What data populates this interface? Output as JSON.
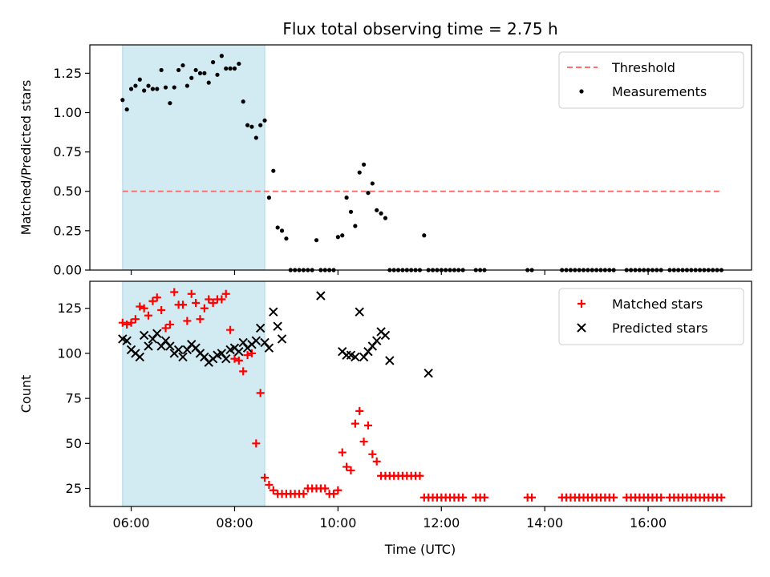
{
  "chart_data": {
    "title": "Flux total observing time = 2.75 h",
    "xlabel": "Time (UTC)",
    "x_range_hours": [
      5.2,
      18.0
    ],
    "x_ticks": [
      "06:00",
      "08:00",
      "10:00",
      "12:00",
      "14:00",
      "16:00"
    ],
    "highlight_band": {
      "start": "05:50",
      "end": "08:35",
      "color": "#add8e6"
    },
    "panels": [
      {
        "type": "scatter",
        "ylabel": "Matched/Predicted stars",
        "ylim": [
          0,
          1.43
        ],
        "yticks": [
          "0.00",
          "0.25",
          "0.50",
          "0.75",
          "1.00",
          "1.25"
        ],
        "legend_position": "top-right",
        "threshold": {
          "name": "Threshold",
          "value": 0.5,
          "x_start": "05:50",
          "x_end": "17:25",
          "color": "#ff6f6f"
        },
        "series": [
          {
            "name": "Measurements",
            "color": "#000000",
            "marker": "dot",
            "x": [
              "05:50",
              "05:55",
              "06:00",
              "06:05",
              "06:10",
              "06:15",
              "06:20",
              "06:25",
              "06:30",
              "06:35",
              "06:40",
              "06:45",
              "06:50",
              "06:55",
              "07:00",
              "07:05",
              "07:10",
              "07:15",
              "07:20",
              "07:25",
              "07:30",
              "07:35",
              "07:40",
              "07:45",
              "07:50",
              "07:55",
              "08:00",
              "08:05",
              "08:10",
              "08:15",
              "08:20",
              "08:25",
              "08:30",
              "08:35",
              "08:40",
              "08:45",
              "08:50",
              "08:55",
              "09:00",
              "09:05",
              "09:10",
              "09:15",
              "09:20",
              "09:25",
              "09:30",
              "09:35",
              "09:40",
              "09:45",
              "09:50",
              "09:55",
              "10:00",
              "10:05",
              "10:10",
              "10:15",
              "10:20",
              "10:25",
              "10:30",
              "10:35",
              "10:40",
              "10:45",
              "10:50",
              "10:55",
              "11:00",
              "11:05",
              "11:10",
              "11:15",
              "11:20",
              "11:25",
              "11:30",
              "11:35",
              "11:40",
              "11:45",
              "11:50",
              "11:55",
              "12:00",
              "12:05",
              "12:10",
              "12:15",
              "12:20",
              "12:25",
              "12:40",
              "12:45",
              "12:50",
              "13:40",
              "13:45",
              "14:20",
              "14:25",
              "14:30",
              "14:35",
              "14:40",
              "14:45",
              "14:50",
              "14:55",
              "15:00",
              "15:05",
              "15:10",
              "15:15",
              "15:20",
              "15:35",
              "15:40",
              "15:45",
              "15:50",
              "15:55",
              "16:00",
              "16:05",
              "16:10",
              "16:15",
              "16:25",
              "16:30",
              "16:35",
              "16:40",
              "16:45",
              "16:50",
              "16:55",
              "17:00",
              "17:05",
              "17:10",
              "17:15",
              "17:20",
              "17:25"
            ],
            "y": [
              1.08,
              1.02,
              1.15,
              1.17,
              1.21,
              1.14,
              1.17,
              1.15,
              1.15,
              1.27,
              1.16,
              1.06,
              1.16,
              1.27,
              1.3,
              1.17,
              1.22,
              1.27,
              1.25,
              1.25,
              1.19,
              1.32,
              1.24,
              1.36,
              1.28,
              1.28,
              1.28,
              1.31,
              1.07,
              0.92,
              0.91,
              0.84,
              0.92,
              0.95,
              0.46,
              0.63,
              0.27,
              0.25,
              0.2,
              0.0,
              0.0,
              0.0,
              0.0,
              0.0,
              0.0,
              0.19,
              0.0,
              0.0,
              0.0,
              0.0,
              0.21,
              0.22,
              0.46,
              0.37,
              0.28,
              0.62,
              0.67,
              0.49,
              0.55,
              0.38,
              0.36,
              0.33,
              0.0,
              0.0,
              0.0,
              0.0,
              0.0,
              0.0,
              0.0,
              0.0,
              0.22,
              0.0,
              0.0,
              0.0,
              0.0,
              0.0,
              0.0,
              0.0,
              0.0,
              0.0,
              0.0,
              0.0,
              0.0,
              0.0,
              0.0,
              0.0,
              0.0,
              0.0,
              0.0,
              0.0,
              0.0,
              0.0,
              0.0,
              0.0,
              0.0,
              0.0,
              0.0,
              0.0,
              0.0,
              0.0,
              0.0,
              0.0,
              0.0,
              0.0,
              0.0,
              0.0,
              0.0,
              0.0,
              0.0,
              0.0,
              0.0,
              0.0,
              0.0,
              0.0,
              0.0,
              0.0,
              0.0,
              0.0,
              0.0,
              0.0
            ]
          }
        ]
      },
      {
        "type": "scatter",
        "ylabel": "Count",
        "ylim": [
          15,
          140
        ],
        "yticks": [
          "25",
          "50",
          "75",
          "100",
          "125"
        ],
        "legend_position": "top-right",
        "series": [
          {
            "name": "Matched stars",
            "color": "#ff0000",
            "marker": "plus",
            "x": [
              "05:50",
              "05:55",
              "06:00",
              "06:05",
              "06:10",
              "06:15",
              "06:20",
              "06:25",
              "06:30",
              "06:35",
              "06:40",
              "06:45",
              "06:50",
              "06:55",
              "07:00",
              "07:05",
              "07:10",
              "07:15",
              "07:20",
              "07:25",
              "07:30",
              "07:35",
              "07:40",
              "07:45",
              "07:50",
              "07:55",
              "08:00",
              "08:05",
              "08:10",
              "08:15",
              "08:20",
              "08:25",
              "08:30",
              "08:35",
              "08:40",
              "08:45",
              "08:50",
              "08:55",
              "09:00",
              "09:05",
              "09:10",
              "09:15",
              "09:20",
              "09:25",
              "09:30",
              "09:35",
              "09:40",
              "09:45",
              "09:50",
              "09:55",
              "10:00",
              "10:05",
              "10:10",
              "10:15",
              "10:20",
              "10:25",
              "10:30",
              "10:35",
              "10:40",
              "10:45",
              "10:50",
              "10:55",
              "11:00",
              "11:05",
              "11:10",
              "11:15",
              "11:20",
              "11:25",
              "11:30",
              "11:35",
              "11:40",
              "11:45",
              "11:50",
              "11:55",
              "12:00",
              "12:05",
              "12:10",
              "12:15",
              "12:20",
              "12:25",
              "12:40",
              "12:45",
              "12:50",
              "13:40",
              "13:45",
              "14:20",
              "14:25",
              "14:30",
              "14:35",
              "14:40",
              "14:45",
              "14:50",
              "14:55",
              "15:00",
              "15:05",
              "15:10",
              "15:15",
              "15:20",
              "15:35",
              "15:40",
              "15:45",
              "15:50",
              "15:55",
              "16:00",
              "16:05",
              "16:10",
              "16:15",
              "16:25",
              "16:30",
              "16:35",
              "16:40",
              "16:45",
              "16:50",
              "16:55",
              "17:00",
              "17:05",
              "17:10",
              "17:15",
              "17:20",
              "17:25"
            ],
            "y": [
              117,
              116,
              117,
              119,
              126,
              125,
              121,
              129,
              131,
              124,
              114,
              116,
              134,
              127,
              127,
              118,
              133,
              128,
              119,
              125,
              130,
              128,
              130,
              130,
              133,
              113,
              97,
              96,
              90,
              99,
              100,
              50,
              78,
              31,
              27,
              24,
              22,
              22,
              22,
              22,
              22,
              22,
              22,
              25,
              25,
              25,
              25,
              25,
              22,
              22,
              24,
              45,
              37,
              35,
              61,
              68,
              51,
              60,
              44,
              40,
              32,
              32,
              32,
              32,
              32,
              32,
              32,
              32,
              32,
              32,
              20,
              20,
              20,
              20,
              20,
              20,
              20,
              20,
              20,
              20,
              20,
              20,
              20,
              20,
              20,
              20,
              20,
              20,
              20,
              20,
              20,
              20,
              20,
              20,
              20,
              20,
              20,
              20,
              20,
              20,
              20,
              20,
              20,
              20,
              20,
              20,
              20,
              20,
              20,
              20,
              20,
              20,
              20,
              20,
              20,
              20,
              20,
              20,
              20,
              20
            ]
          },
          {
            "name": "Predicted stars",
            "color": "#000000",
            "marker": "x",
            "x": [
              "05:50",
              "05:55",
              "06:00",
              "06:05",
              "06:10",
              "06:15",
              "06:20",
              "06:25",
              "06:30",
              "06:35",
              "06:40",
              "06:45",
              "06:50",
              "06:55",
              "07:00",
              "07:05",
              "07:10",
              "07:15",
              "07:20",
              "07:25",
              "07:30",
              "07:35",
              "07:40",
              "07:45",
              "07:50",
              "07:55",
              "08:00",
              "08:05",
              "08:10",
              "08:15",
              "08:20",
              "08:25",
              "08:30",
              "08:35",
              "08:40",
              "08:45",
              "08:50",
              "08:55",
              "09:40",
              "10:05",
              "10:10",
              "10:15",
              "10:20",
              "10:25",
              "10:30",
              "10:35",
              "10:40",
              "10:45",
              "10:50",
              "10:55",
              "11:00",
              "11:45"
            ],
            "y": [
              108,
              107,
              102,
              100,
              98,
              110,
              104,
              108,
              111,
              104,
              107,
              104,
              100,
              102,
              98,
              102,
              105,
              103,
              100,
              98,
              95,
              97,
              99,
              100,
              97,
              102,
              103,
              101,
              106,
              103,
              105,
              107,
              114,
              106,
              103,
              123,
              115,
              108,
              132,
              101,
              99,
              99,
              98,
              123,
              98,
              101,
              104,
              107,
              112,
              110,
              96,
              89
            ]
          }
        ]
      }
    ]
  }
}
